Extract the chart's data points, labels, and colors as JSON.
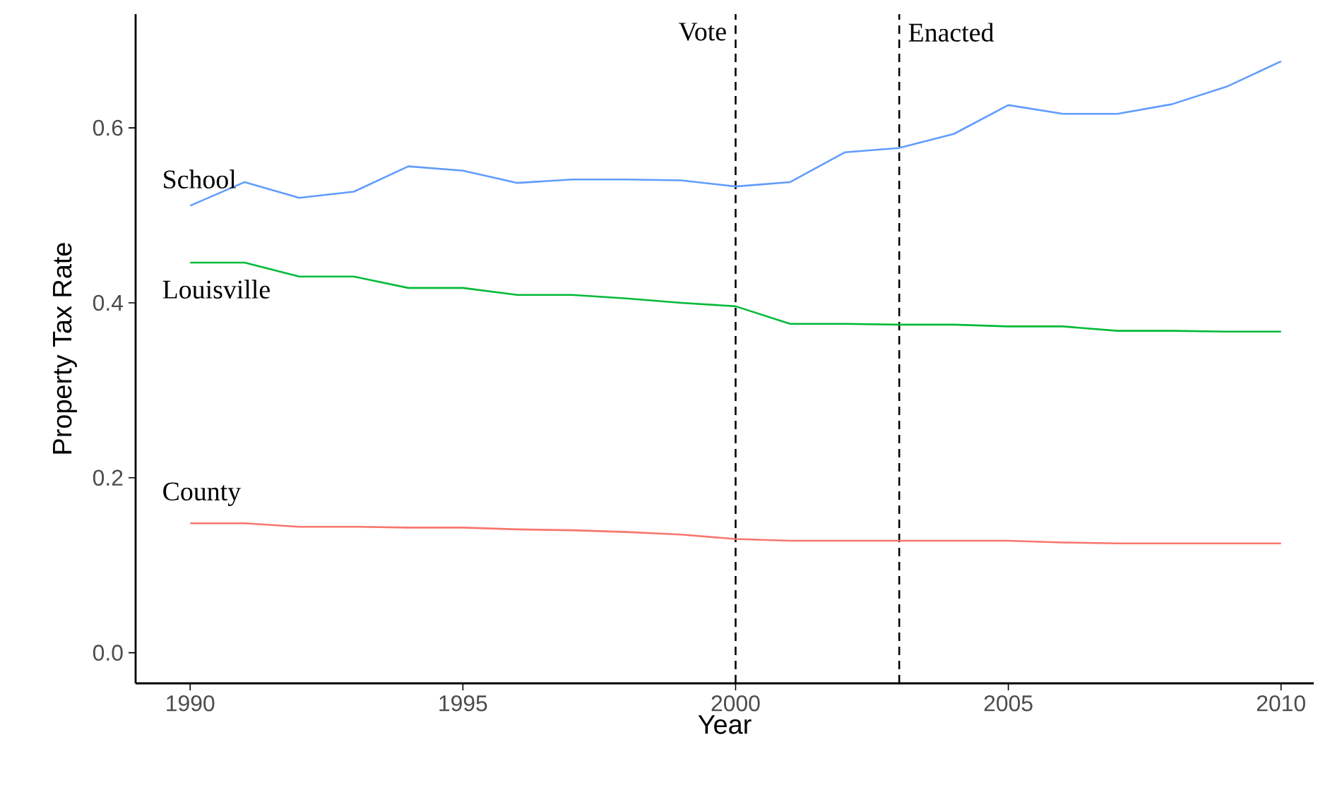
{
  "chart_data": {
    "type": "line",
    "xlabel": "Year",
    "ylabel": "Property Tax Rate",
    "x": [
      1990,
      1991,
      1992,
      1993,
      1994,
      1995,
      1996,
      1997,
      1998,
      1999,
      2000,
      2001,
      2002,
      2003,
      2004,
      2005,
      2006,
      2007,
      2008,
      2009,
      2010
    ],
    "series": [
      {
        "name": "School",
        "color": "#619cff",
        "values": [
          0.511,
          0.538,
          0.52,
          0.527,
          0.556,
          0.551,
          0.537,
          0.541,
          0.541,
          0.54,
          0.533,
          0.538,
          0.572,
          0.577,
          0.593,
          0.626,
          0.616,
          0.616,
          0.627,
          0.647,
          0.676
        ]
      },
      {
        "name": "Louisville",
        "color": "#00ba38",
        "values": [
          0.446,
          0.446,
          0.43,
          0.43,
          0.417,
          0.417,
          0.409,
          0.409,
          0.405,
          0.4,
          0.396,
          0.376,
          0.376,
          0.375,
          0.375,
          0.373,
          0.373,
          0.368,
          0.368,
          0.367,
          0.367
        ]
      },
      {
        "name": "County",
        "color": "#f8766d",
        "values": [
          0.148,
          0.148,
          0.144,
          0.144,
          0.143,
          0.143,
          0.141,
          0.14,
          0.138,
          0.135,
          0.13,
          0.128,
          0.128,
          0.128,
          0.128,
          0.128,
          0.126,
          0.125,
          0.125,
          0.125,
          0.125
        ]
      }
    ],
    "ref_lines": [
      {
        "axis": "x",
        "value": 2000,
        "label": "Vote",
        "line_style": "dashed",
        "color": "#000000"
      },
      {
        "axis": "x",
        "value": 2003,
        "label": "Enacted",
        "line_style": "dashed",
        "color": "#000000"
      }
    ],
    "xlim": [
      1989,
      2010.6
    ],
    "ylim": [
      -0.035,
      0.73
    ],
    "xticks": [
      1990,
      1995,
      2000,
      2005,
      2010
    ],
    "yticks": [
      {
        "value": 0,
        "label": "0.0"
      },
      {
        "value": 0.2,
        "label": "0.2"
      },
      {
        "value": 0.4,
        "label": "0.4"
      },
      {
        "value": 0.6,
        "label": "0.6"
      }
    ],
    "grid": false,
    "marker": "none",
    "line_style": "solid"
  }
}
